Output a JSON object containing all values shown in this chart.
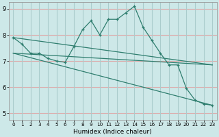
{
  "xlabel": "Humidex (Indice chaleur)",
  "background_color": "#cde8e8",
  "grid_color_h": "#ddaaaa",
  "grid_color_v": "#aacccc",
  "line_color": "#2e7d6e",
  "xlim": [
    -0.5,
    23.5
  ],
  "ylim": [
    4.75,
    9.25
  ],
  "x_ticks": [
    0,
    1,
    2,
    3,
    4,
    5,
    6,
    7,
    8,
    9,
    10,
    11,
    12,
    13,
    14,
    15,
    16,
    17,
    18,
    19,
    20,
    21,
    22,
    23
  ],
  "y_ticks": [
    5,
    6,
    7,
    8,
    9
  ],
  "curve_x": [
    0,
    1,
    2,
    3,
    4,
    5,
    6,
    7,
    8,
    9,
    10,
    11,
    12,
    13,
    14,
    15,
    16,
    17,
    18,
    19,
    20,
    21,
    22,
    23
  ],
  "curve_y": [
    7.9,
    7.65,
    7.3,
    7.3,
    7.1,
    7.0,
    6.95,
    7.55,
    8.2,
    8.55,
    8.0,
    8.6,
    8.6,
    8.85,
    9.1,
    8.3,
    7.8,
    7.3,
    6.85,
    6.85,
    5.95,
    5.5,
    5.35,
    5.3
  ],
  "line1_x": [
    0,
    23
  ],
  "line1_y": [
    7.9,
    6.85
  ],
  "line2_x": [
    0,
    23
  ],
  "line2_y": [
    7.3,
    5.3
  ],
  "line3_x": [
    0,
    23
  ],
  "line3_y": [
    7.3,
    6.85
  ]
}
